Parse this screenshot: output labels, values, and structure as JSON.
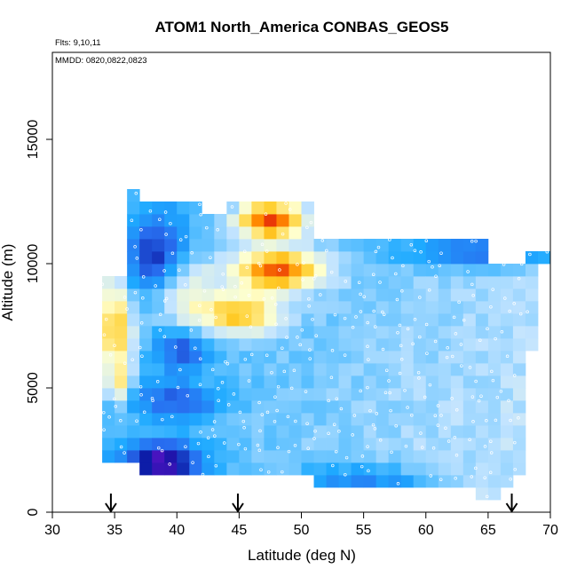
{
  "chart_data": {
    "type": "heatmap",
    "title": "ATOM1 North_America CONBAS_GEOS5",
    "annotations": [
      "Flts: 9,10,11",
      "MMDD: 0820,0822,0823"
    ],
    "xlabel": "Latitude (deg N)",
    "ylabel": "Altitude (m)",
    "xlim": [
      30,
      70
    ],
    "ylim": [
      0,
      18500
    ],
    "x_ticks": [
      "30",
      "35",
      "40",
      "45",
      "50",
      "55",
      "60",
      "65",
      "70"
    ],
    "y_ticks": [
      "0",
      "5000",
      "10000",
      "15000"
    ],
    "flight_marker_latitudes": [
      34.7,
      44.9,
      66.9
    ],
    "grid": false,
    "legend": "none",
    "colors": {
      "dark_blue": "#0a14a0",
      "mid_blue": "#2f6ff0",
      "light_blue": "#c8e6ff",
      "cream": "#ffffcc",
      "orange": "#ff8c00",
      "red": "#d81010",
      "dark_red": "#8c0a0a"
    },
    "cell_size": {
      "latitude_deg": 1.0,
      "altitude_m": 500
    },
    "notable_regions": [
      {
        "description": "high-value core (red)",
        "lat_range": [
          45,
          50
        ],
        "alt_range": [
          11500,
          12000
        ]
      },
      {
        "description": "high-value core (red)",
        "lat_range": [
          46,
          51
        ],
        "alt_range": [
          9500,
          10000
        ]
      },
      {
        "description": "high values near surface-to-mid levels",
        "lat_range": [
          34,
          37
        ],
        "alt_range": [
          5500,
          9000
        ]
      },
      {
        "description": "lowest values (dark blue)",
        "lat_range": [
          37,
          43
        ],
        "alt_range": [
          1500,
          2500
        ]
      }
    ]
  }
}
